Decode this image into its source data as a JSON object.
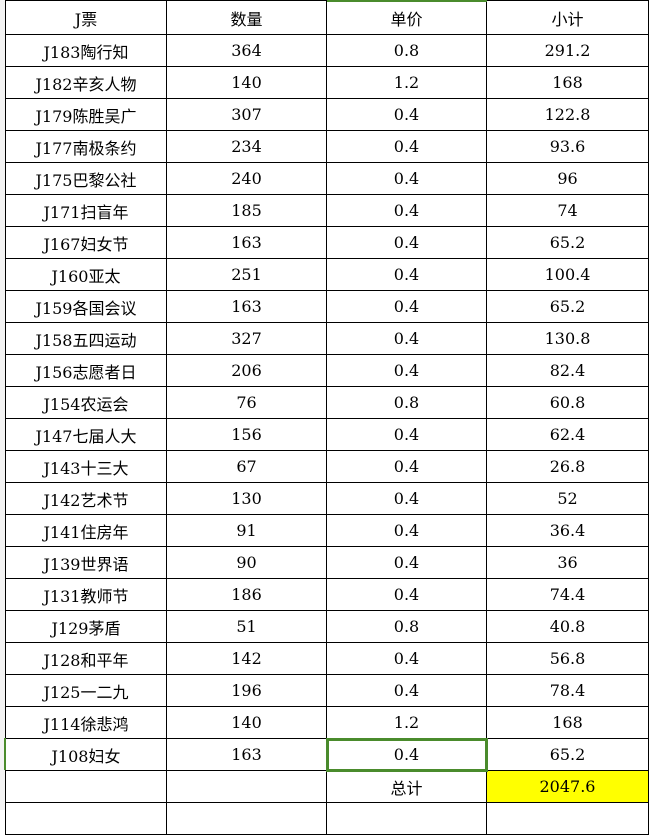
{
  "headers": [
    "J票",
    "数量",
    "单价",
    "小计"
  ],
  "rows": [
    [
      "J183陶行知",
      "364",
      "0.8",
      "291.2"
    ],
    [
      "J182辛亥人物",
      "140",
      "1.2",
      "168"
    ],
    [
      "J179陈胜吴广",
      "307",
      "0.4",
      "122.8"
    ],
    [
      "J177南极条约",
      "234",
      "0.4",
      "93.6"
    ],
    [
      "J175巴黎公社",
      "240",
      "0.4",
      "96"
    ],
    [
      "J171扫盲年",
      "185",
      "0.4",
      "74"
    ],
    [
      "J167妇女节",
      "163",
      "0.4",
      "65.2"
    ],
    [
      "J160亚太",
      "251",
      "0.4",
      "100.4"
    ],
    [
      "J159各国会议",
      "163",
      "0.4",
      "65.2"
    ],
    [
      "J158五四运动",
      "327",
      "0.4",
      "130.8"
    ],
    [
      "J156志愿者日",
      "206",
      "0.4",
      "82.4"
    ],
    [
      "J154农运会",
      "76",
      "0.8",
      "60.8"
    ],
    [
      "J147七届人大",
      "156",
      "0.4",
      "62.4"
    ],
    [
      "J143十三大",
      "67",
      "0.4",
      "26.8"
    ],
    [
      "J142艺术节",
      "130",
      "0.4",
      "52"
    ],
    [
      "J141住房年",
      "91",
      "0.4",
      "36.4"
    ],
    [
      "J139世界语",
      "90",
      "0.4",
      "36"
    ],
    [
      "J131教师节",
      "186",
      "0.4",
      "74.4"
    ],
    [
      "J129茅盾",
      "51",
      "0.8",
      "40.8"
    ],
    [
      "J128和平年",
      "142",
      "0.4",
      "56.8"
    ],
    [
      "J125一二九",
      "196",
      "0.4",
      "78.4"
    ],
    [
      "J114徐悲鸿",
      "140",
      "1.2",
      "168"
    ],
    [
      "J108妇女",
      "163",
      "0.4",
      "65.2"
    ]
  ],
  "total": {
    "label": "总计",
    "value": "2047.6"
  },
  "colors": {
    "selection": "#4a8b2c",
    "total_highlight": "#ffff00"
  }
}
